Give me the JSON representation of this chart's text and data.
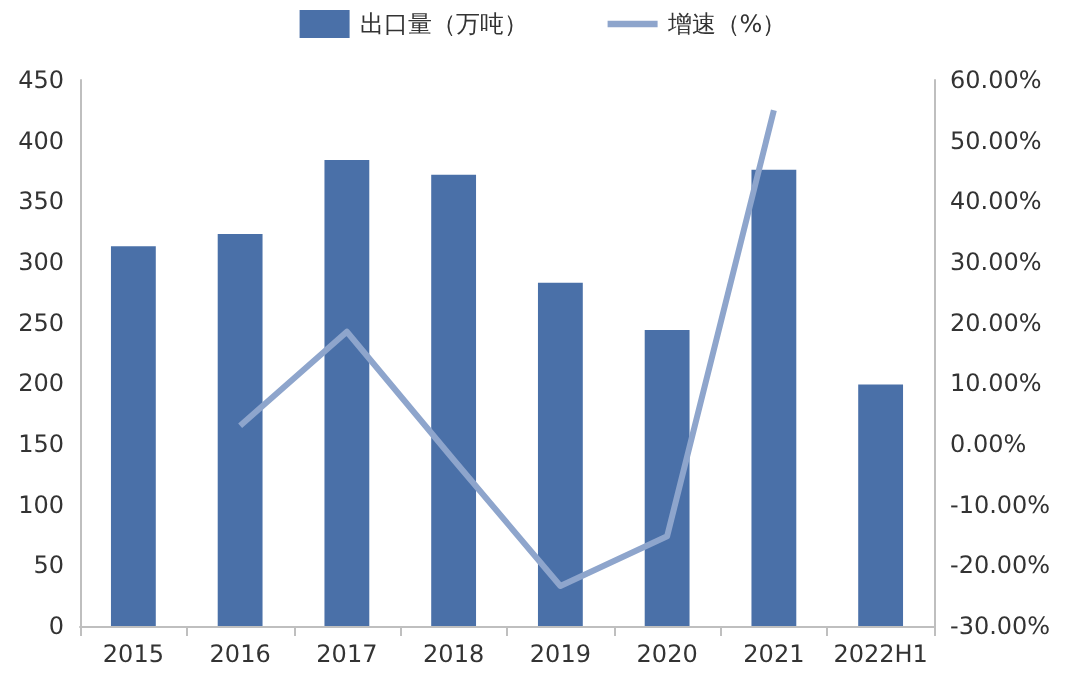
{
  "chart_data": {
    "type": "bar",
    "categories": [
      "2015",
      "2016",
      "2017",
      "2018",
      "2019",
      "2020",
      "2021",
      "2022H1"
    ],
    "series": [
      {
        "name": "出口量（万吨）",
        "color": "#4a70a8",
        "values": [
          313,
          323,
          384,
          372,
          283,
          244,
          376,
          199
        ]
      },
      {
        "name": "增速（%）",
        "type": "line",
        "axis": "y2",
        "color": "#8ea5cc",
        "values": [
          null,
          3.0,
          18.5,
          -2.6,
          -23.4,
          -15.2,
          55.0,
          null
        ]
      }
    ],
    "ylim": [
      0,
      450
    ],
    "yticks": [
      0,
      50,
      100,
      150,
      200,
      250,
      300,
      350,
      400,
      450
    ],
    "y2lim": [
      -30,
      60
    ],
    "y2ticks": [
      {
        "value": -30,
        "label": "-30.00%"
      },
      {
        "value": -20,
        "label": "-20.00%"
      },
      {
        "value": -10,
        "label": "-10.00%"
      },
      {
        "value": 0,
        "label": "0.00%"
      },
      {
        "value": 10,
        "label": "10.00%"
      },
      {
        "value": 20,
        "label": "20.00%"
      },
      {
        "value": 30,
        "label": "30.00%"
      },
      {
        "value": 40,
        "label": "40.00%"
      },
      {
        "value": 50,
        "label": "50.00%"
      },
      {
        "value": 60,
        "label": "60.00%"
      }
    ],
    "legend": "top",
    "grid": false,
    "marker": "none"
  }
}
